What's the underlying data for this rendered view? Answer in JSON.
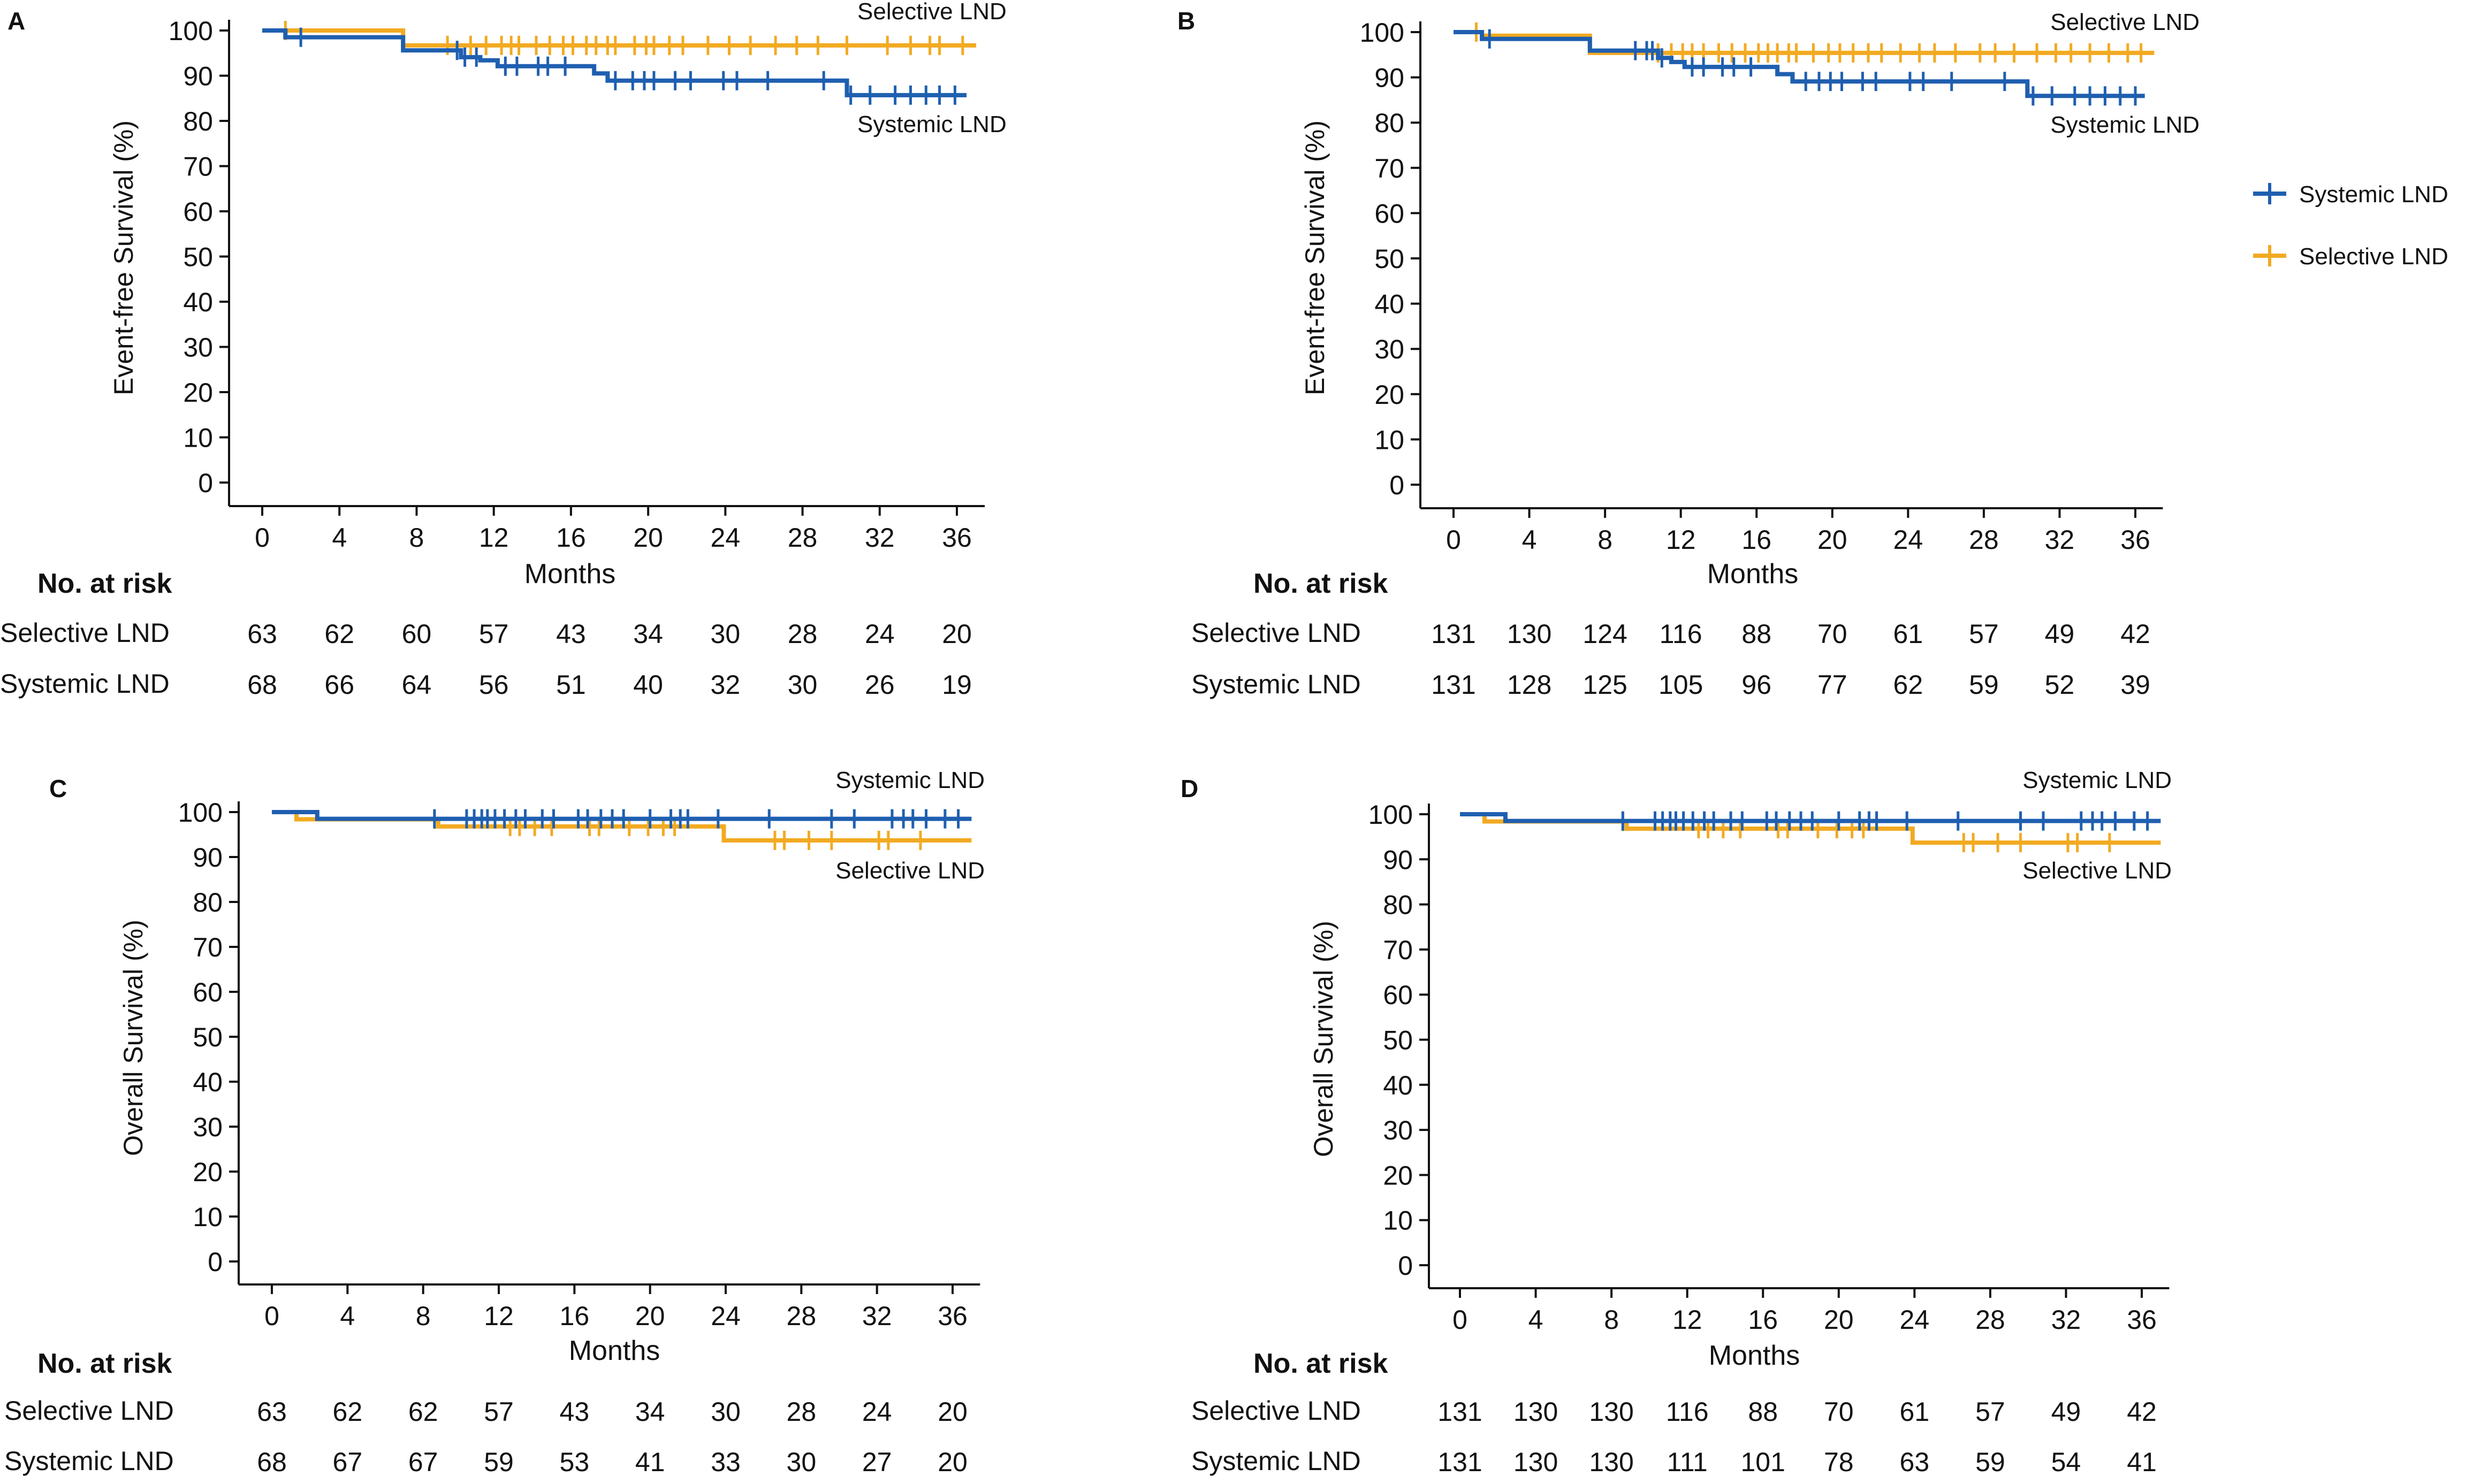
{
  "colors": {
    "systemic": "#1f5fb0",
    "selective": "#f2aa22",
    "axis": "#111111"
  },
  "legend": {
    "items": [
      {
        "label": "Systemic LND",
        "color": "#1f5fb0",
        "icon": "plus-line-icon"
      },
      {
        "label": "Selective LND",
        "color": "#f2aa22",
        "icon": "plus-line-icon"
      }
    ]
  },
  "chart_data": [
    {
      "panel": "A",
      "type": "line",
      "subtype": "kaplan-meier",
      "ylabel": "Event-free Survival (%)",
      "xlabel": "Months",
      "yticks": [
        "0",
        "10",
        "20",
        "30",
        "40",
        "50",
        "60",
        "70",
        "80",
        "90",
        "100"
      ],
      "xticks": [
        "0",
        "4",
        "8",
        "12",
        "16",
        "20",
        "24",
        "28",
        "32",
        "36"
      ],
      "xlim": [
        0,
        37
      ],
      "ylim": [
        0,
        100
      ],
      "series_labels": {
        "selective": "Selective LND",
        "systemic": "Systemic LND"
      },
      "series": [
        {
          "name": "Selective LND",
          "key": "selective",
          "x": [
            0,
            7.3,
            9.8,
            37
          ],
          "y": [
            100,
            96.7,
            96.7,
            96.7
          ],
          "censor_x": [
            1.2,
            9.6,
            10.8,
            11.6,
            12.4,
            12.9,
            13.3,
            14.2,
            14.9,
            15.6,
            16.1,
            16.8,
            17.3,
            17.9,
            18.3,
            19.3,
            19.9,
            20.3,
            21.1,
            21.8,
            23.1,
            24.2,
            25.3,
            26.6,
            27.7,
            28.8,
            30.3,
            32.4,
            33.6,
            34.6,
            35.1,
            36.3
          ]
        },
        {
          "name": "Systemic LND",
          "key": "systemic",
          "x": [
            0,
            1.2,
            7.3,
            10.3,
            11.3,
            12.2,
            17.2,
            17.9,
            30.3,
            36.5
          ],
          "y": [
            100,
            98.5,
            95.6,
            94.1,
            93.4,
            92.1,
            90.5,
            88.9,
            85.7,
            85.7
          ],
          "censor_x": [
            2.0,
            10.1,
            10.5,
            11.1,
            12.6,
            13.2,
            14.3,
            14.8,
            15.7,
            18.3,
            19.2,
            19.8,
            20.3,
            21.4,
            22.2,
            23.9,
            24.6,
            26.2,
            29.1,
            30.5,
            31.5,
            32.8,
            33.6,
            34.4,
            35.1,
            35.9
          ]
        }
      ],
      "risk_table": {
        "title": "No. at risk",
        "rows": [
          {
            "label": "Selective LND",
            "values": [
              "63",
              "62",
              "60",
              "57",
              "43",
              "34",
              "30",
              "28",
              "24",
              "20"
            ]
          },
          {
            "label": "Systemic LND",
            "values": [
              "68",
              "66",
              "64",
              "56",
              "51",
              "40",
              "32",
              "30",
              "26",
              "19"
            ]
          }
        ]
      }
    },
    {
      "panel": "B",
      "type": "line",
      "subtype": "kaplan-meier",
      "ylabel": "Event-free Survival (%)",
      "xlabel": "Months",
      "yticks": [
        "0",
        "10",
        "20",
        "30",
        "40",
        "50",
        "60",
        "70",
        "80",
        "90",
        "100"
      ],
      "xticks": [
        "0",
        "4",
        "8",
        "12",
        "16",
        "20",
        "24",
        "28",
        "32",
        "36"
      ],
      "xlim": [
        0,
        37
      ],
      "ylim": [
        0,
        100
      ],
      "series_labels": {
        "selective": "Selective LND",
        "systemic": "Systemic LND"
      },
      "series": [
        {
          "name": "Selective LND",
          "key": "selective",
          "x": [
            0,
            1.5,
            7.2,
            11.0,
            37
          ],
          "y": [
            100,
            99.2,
            95.4,
            95.4,
            95.4
          ],
          "censor_x": [
            1.2,
            10.8,
            11.5,
            12.1,
            12.6,
            13.2,
            14.0,
            14.7,
            15.4,
            16.1,
            16.6,
            17.1,
            17.7,
            18.1,
            19.0,
            19.8,
            20.4,
            21.1,
            21.9,
            22.6,
            23.6,
            24.6,
            25.4,
            26.5,
            27.8,
            28.6,
            29.6,
            30.8,
            31.8,
            32.6,
            33.6,
            34.6,
            35.6,
            36.3
          ]
        },
        {
          "name": "Systemic LND",
          "key": "systemic",
          "x": [
            0,
            1.5,
            7.2,
            10.8,
            11.5,
            12.2,
            17.1,
            17.9,
            30.3,
            36.5
          ],
          "y": [
            100,
            98.5,
            95.9,
            94.3,
            93.4,
            92.3,
            90.7,
            89.1,
            85.9,
            85.9
          ],
          "censor_x": [
            1.9,
            9.6,
            10.2,
            10.5,
            11.0,
            12.6,
            13.2,
            14.2,
            14.8,
            15.7,
            18.6,
            19.3,
            19.9,
            20.5,
            21.6,
            22.3,
            24.1,
            24.8,
            26.3,
            29.1,
            30.6,
            31.6,
            32.8,
            33.6,
            34.4,
            35.2,
            36.0
          ]
        }
      ],
      "risk_table": {
        "title": "No. at risk",
        "rows": [
          {
            "label": "Selective LND",
            "values": [
              "131",
              "130",
              "124",
              "116",
              "88",
              "70",
              "61",
              "57",
              "49",
              "42"
            ]
          },
          {
            "label": "Systemic LND",
            "values": [
              "131",
              "128",
              "125",
              "105",
              "96",
              "77",
              "62",
              "59",
              "52",
              "39"
            ]
          }
        ]
      }
    },
    {
      "panel": "C",
      "type": "line",
      "subtype": "kaplan-meier",
      "ylabel": "Overall Survival (%)",
      "xlabel": "Months",
      "yticks": [
        "0",
        "10",
        "20",
        "30",
        "40",
        "50",
        "60",
        "70",
        "80",
        "90",
        "100"
      ],
      "xticks": [
        "0",
        "4",
        "8",
        "12",
        "16",
        "20",
        "24",
        "28",
        "32",
        "36"
      ],
      "xlim": [
        0,
        37
      ],
      "ylim": [
        0,
        100
      ],
      "series_labels": {
        "selective": "Selective LND",
        "systemic": "Systemic LND"
      },
      "series": [
        {
          "name": "Systemic LND",
          "key": "systemic",
          "x": [
            0,
            2.4,
            37
          ],
          "y": [
            100,
            98.5,
            98.5
          ],
          "censor_x": [
            8.6,
            10.3,
            10.7,
            11.1,
            11.4,
            11.8,
            12.3,
            12.9,
            13.4,
            14.3,
            14.9,
            16.2,
            16.7,
            17.4,
            18.0,
            18.6,
            20.0,
            21.1,
            21.6,
            22.0,
            23.6,
            26.3,
            29.6,
            30.8,
            32.8,
            33.4,
            33.9,
            34.6,
            35.6,
            36.3
          ]
        },
        {
          "name": "Selective LND",
          "key": "selective",
          "x": [
            0,
            1.3,
            8.8,
            23.9,
            37
          ],
          "y": [
            100,
            98.4,
            96.8,
            93.7,
            93.7
          ],
          "censor_x": [
            8.6,
            12.6,
            13.1,
            13.9,
            14.8,
            16.8,
            17.3,
            18.9,
            19.9,
            20.7,
            21.3,
            26.6,
            27.1,
            28.4,
            29.6,
            32.1,
            32.6,
            34.3
          ]
        }
      ],
      "risk_table": {
        "title": "No. at risk",
        "rows": [
          {
            "label": "Selective LND",
            "values": [
              "63",
              "62",
              "62",
              "57",
              "43",
              "34",
              "30",
              "28",
              "24",
              "20"
            ]
          },
          {
            "label": "Systemic LND",
            "values": [
              "68",
              "67",
              "67",
              "59",
              "53",
              "41",
              "33",
              "30",
              "27",
              "20"
            ]
          }
        ]
      }
    },
    {
      "panel": "D",
      "type": "line",
      "subtype": "kaplan-meier",
      "ylabel": "Overall Survival (%)",
      "xlabel": "Months",
      "yticks": [
        "0",
        "10",
        "20",
        "30",
        "40",
        "50",
        "60",
        "70",
        "80",
        "90",
        "100"
      ],
      "xticks": [
        "0",
        "4",
        "8",
        "12",
        "16",
        "20",
        "24",
        "28",
        "32",
        "36"
      ],
      "xlim": [
        0,
        37
      ],
      "ylim": [
        0,
        100
      ],
      "series_labels": {
        "selective": "Selective LND",
        "systemic": "Systemic LND"
      },
      "series": [
        {
          "name": "Systemic LND",
          "key": "systemic",
          "x": [
            0,
            2.4,
            37
          ],
          "y": [
            100,
            98.5,
            98.5
          ],
          "censor_x": [
            8.6,
            10.3,
            10.7,
            11.1,
            11.4,
            11.8,
            12.3,
            12.9,
            13.4,
            14.3,
            14.9,
            16.2,
            16.7,
            17.4,
            18.0,
            18.6,
            20.0,
            21.1,
            21.6,
            22.0,
            23.6,
            26.3,
            29.6,
            30.8,
            32.8,
            33.4,
            33.9,
            34.6,
            35.6,
            36.3
          ]
        },
        {
          "name": "Selective LND",
          "key": "selective",
          "x": [
            0,
            1.3,
            8.8,
            23.9,
            37
          ],
          "y": [
            100,
            98.4,
            96.8,
            93.7,
            93.7
          ],
          "censor_x": [
            8.6,
            12.6,
            13.1,
            13.9,
            14.8,
            16.8,
            17.3,
            18.9,
            19.9,
            20.7,
            21.3,
            26.6,
            27.1,
            28.4,
            29.6,
            32.1,
            32.6,
            34.3
          ]
        }
      ],
      "risk_table": {
        "title": "No. at risk",
        "rows": [
          {
            "label": "Selective LND",
            "values": [
              "131",
              "130",
              "130",
              "116",
              "88",
              "70",
              "61",
              "57",
              "49",
              "42"
            ]
          },
          {
            "label": "Systemic LND",
            "values": [
              "131",
              "130",
              "130",
              "111",
              "101",
              "78",
              "63",
              "59",
              "54",
              "41"
            ]
          }
        ]
      }
    }
  ]
}
